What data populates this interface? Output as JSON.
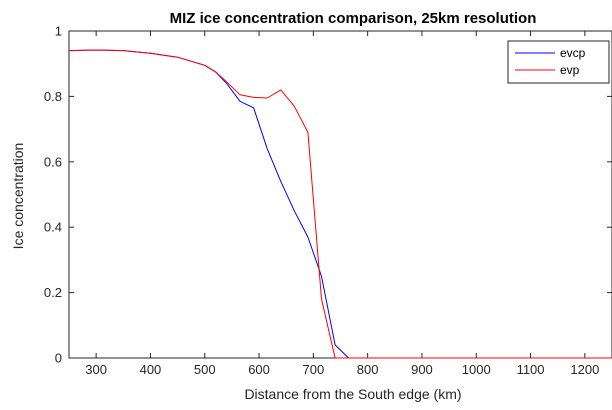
{
  "chart_data": {
    "type": "line",
    "title": "MIZ ice concentration comparison, 25km resolution",
    "xlabel": "Distance from the South edge (km)",
    "ylabel": "Ice concentration",
    "xlim": [
      250,
      1250
    ],
    "ylim": [
      0,
      1
    ],
    "xticks": [
      300,
      400,
      500,
      600,
      700,
      800,
      900,
      1000,
      1100,
      1200
    ],
    "yticks": [
      0,
      0.2,
      0.4,
      0.6,
      0.8,
      1
    ],
    "ytick_labels": [
      "0",
      "0.2",
      "0.4",
      "0.6",
      "0.8",
      "1"
    ],
    "grid": false,
    "legend_position": "top-right",
    "series": [
      {
        "name": "evcp",
        "color": "#0000ff",
        "x": [
          250,
          300,
          350,
          400,
          450,
          500,
          520,
          540,
          565,
          590,
          615,
          640,
          665,
          690,
          715,
          740,
          765,
          800,
          900,
          1000,
          1100,
          1200,
          1250
        ],
        "y": [
          0.94,
          0.942,
          0.94,
          0.932,
          0.92,
          0.895,
          0.875,
          0.84,
          0.785,
          0.765,
          0.64,
          0.54,
          0.45,
          0.37,
          0.25,
          0.04,
          0.0,
          0.0,
          0.0,
          0.0,
          0.0,
          0.0,
          0.0
        ]
      },
      {
        "name": "evp",
        "color": "#ff0000",
        "x": [
          250,
          300,
          350,
          400,
          450,
          500,
          520,
          540,
          565,
          590,
          615,
          640,
          665,
          690,
          715,
          740,
          765,
          800,
          900,
          1000,
          1100,
          1200,
          1250
        ],
        "y": [
          0.94,
          0.942,
          0.94,
          0.932,
          0.92,
          0.895,
          0.875,
          0.845,
          0.805,
          0.797,
          0.795,
          0.82,
          0.77,
          0.69,
          0.18,
          0.0,
          0.0,
          0.0,
          0.0,
          0.0,
          0.0,
          0.0,
          0.0
        ]
      }
    ]
  }
}
